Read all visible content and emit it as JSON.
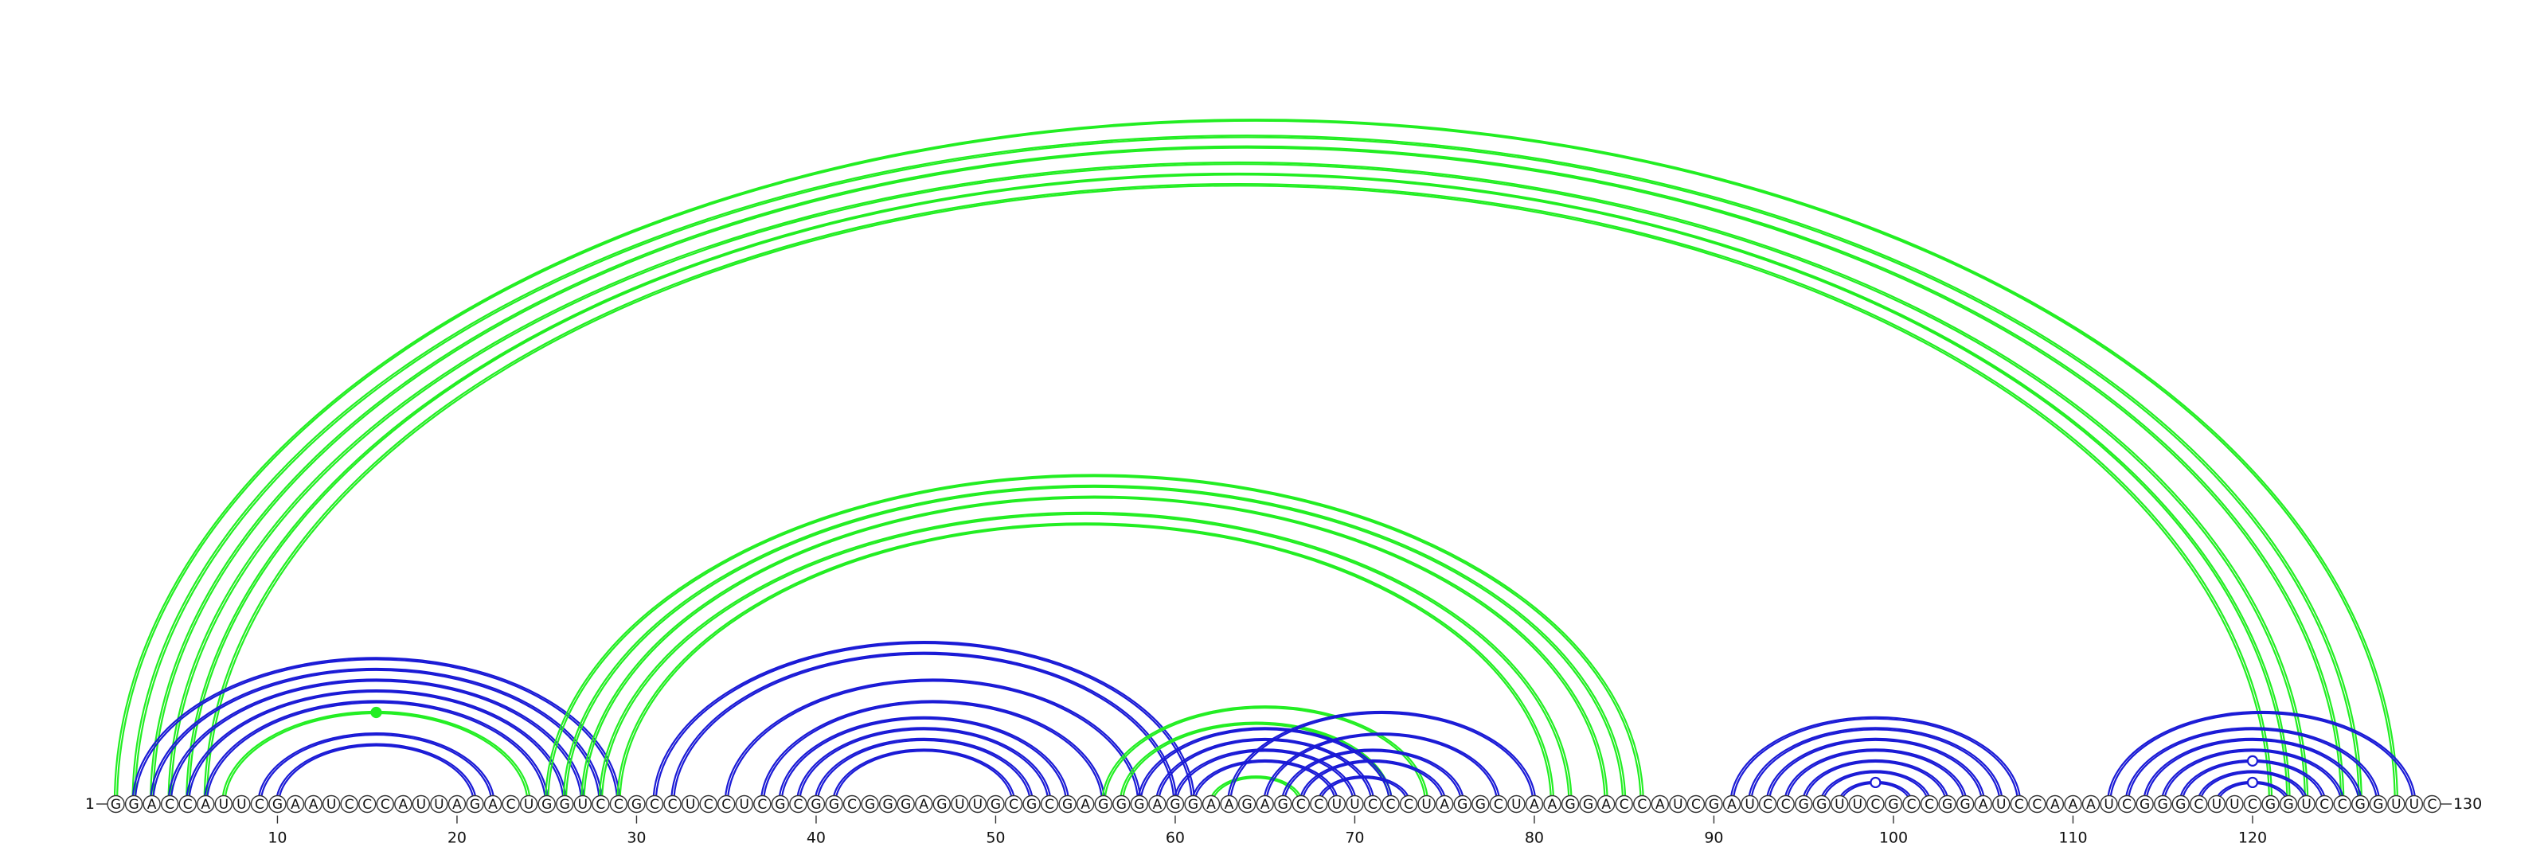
{
  "sequence": "GGACCAUUCGAAUCCCAUUAGACUGGUCCGCCUCCUCGCGGCGGGAGUUGCGCGAGGGAGGAAGAGCCUUCCCUAGGCUAAGGACCAUCGAUCCGGUUCGCCGGAUCCAAAUCGGGCUUCGGUCCGGUUC",
  "start_label": "1",
  "end_label": "130",
  "ticks": [
    {
      "position": 10,
      "label": "10"
    },
    {
      "position": 20,
      "label": "20"
    },
    {
      "position": 30,
      "label": "30"
    },
    {
      "position": 40,
      "label": "40"
    },
    {
      "position": 50,
      "label": "50"
    },
    {
      "position": 60,
      "label": "60"
    },
    {
      "position": 70,
      "label": "70"
    },
    {
      "position": 80,
      "label": "80"
    },
    {
      "position": 90,
      "label": "90"
    },
    {
      "position": 100,
      "label": "100"
    },
    {
      "position": 110,
      "label": "110"
    },
    {
      "position": 120,
      "label": "120"
    }
  ],
  "colors": {
    "green": "#22ee22",
    "blue": "#1a1ad6",
    "base_stroke": "#333333",
    "text": "#111111"
  },
  "arcs": [
    {
      "i": 1,
      "j": 128,
      "color": "green"
    },
    {
      "i": 2,
      "j": 126,
      "color": "green"
    },
    {
      "i": 3,
      "j": 125,
      "color": "green"
    },
    {
      "i": 4,
      "j": 123,
      "color": "green"
    },
    {
      "i": 5,
      "j": 122,
      "color": "green"
    },
    {
      "i": 6,
      "j": 121,
      "color": "green"
    },
    {
      "i": 7,
      "j": 24,
      "color": "green",
      "marker": "filled"
    },
    {
      "i": 2,
      "j": 29,
      "color": "blue"
    },
    {
      "i": 3,
      "j": 28,
      "color": "blue"
    },
    {
      "i": 4,
      "j": 27,
      "color": "blue"
    },
    {
      "i": 5,
      "j": 26,
      "color": "blue"
    },
    {
      "i": 6,
      "j": 25,
      "color": "blue"
    },
    {
      "i": 9,
      "j": 22,
      "color": "blue"
    },
    {
      "i": 10,
      "j": 21,
      "color": "blue"
    },
    {
      "i": 25,
      "j": 86,
      "color": "green"
    },
    {
      "i": 26,
      "j": 85,
      "color": "green"
    },
    {
      "i": 27,
      "j": 84,
      "color": "green"
    },
    {
      "i": 28,
      "j": 82,
      "color": "green"
    },
    {
      "i": 29,
      "j": 81,
      "color": "green"
    },
    {
      "i": 31,
      "j": 61,
      "color": "blue"
    },
    {
      "i": 32,
      "j": 60,
      "color": "blue"
    },
    {
      "i": 35,
      "j": 58,
      "color": "blue"
    },
    {
      "i": 37,
      "j": 56,
      "color": "blue"
    },
    {
      "i": 38,
      "j": 54,
      "color": "blue"
    },
    {
      "i": 39,
      "j": 53,
      "color": "blue"
    },
    {
      "i": 40,
      "j": 52,
      "color": "blue"
    },
    {
      "i": 41,
      "j": 51,
      "color": "blue"
    },
    {
      "i": 56,
      "j": 74,
      "color": "green"
    },
    {
      "i": 57,
      "j": 72,
      "color": "green"
    },
    {
      "i": 62,
      "j": 67,
      "color": "green"
    },
    {
      "i": 58,
      "j": 72,
      "color": "blue"
    },
    {
      "i": 59,
      "j": 71,
      "color": "blue"
    },
    {
      "i": 60,
      "j": 70,
      "color": "blue"
    },
    {
      "i": 61,
      "j": 69,
      "color": "blue"
    },
    {
      "i": 63,
      "j": 80,
      "color": "blue"
    },
    {
      "i": 65,
      "j": 78,
      "color": "blue"
    },
    {
      "i": 66,
      "j": 76,
      "color": "blue"
    },
    {
      "i": 67,
      "j": 75,
      "color": "blue"
    },
    {
      "i": 68,
      "j": 73,
      "color": "blue"
    },
    {
      "i": 91,
      "j": 107,
      "color": "blue"
    },
    {
      "i": 92,
      "j": 106,
      "color": "blue"
    },
    {
      "i": 93,
      "j": 105,
      "color": "blue"
    },
    {
      "i": 94,
      "j": 104,
      "color": "blue"
    },
    {
      "i": 95,
      "j": 103,
      "color": "blue"
    },
    {
      "i": 96,
      "j": 102,
      "color": "blue"
    },
    {
      "i": 97,
      "j": 101,
      "color": "blue",
      "marker": "open"
    },
    {
      "i": 112,
      "j": 129,
      "color": "blue"
    },
    {
      "i": 113,
      "j": 127,
      "color": "blue"
    },
    {
      "i": 114,
      "j": 126,
      "color": "blue"
    },
    {
      "i": 115,
      "j": 125,
      "color": "blue"
    },
    {
      "i": 116,
      "j": 124,
      "color": "blue",
      "marker": "open"
    },
    {
      "i": 117,
      "j": 123,
      "color": "blue"
    },
    {
      "i": 118,
      "j": 122,
      "color": "blue",
      "marker": "open"
    }
  ]
}
